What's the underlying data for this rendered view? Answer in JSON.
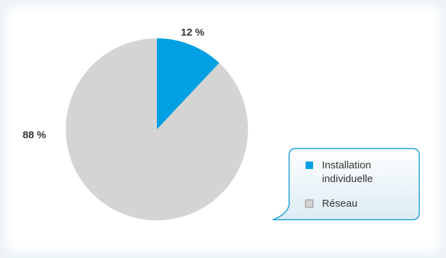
{
  "chart_data": {
    "type": "pie",
    "categories": [
      "Installation individuelle",
      "Réseau"
    ],
    "values": [
      12,
      88
    ],
    "data_labels": [
      "12 %",
      "88 %"
    ],
    "colors": [
      "#00a0e3",
      "#d4d4d4"
    ],
    "legend": {
      "position": "bottom-right",
      "items": [
        {
          "line1": "Installation",
          "line2": "individuelle",
          "color": "#00a0e3"
        },
        {
          "line1": "Réseau",
          "line2": "",
          "color": "#d4d4d4"
        }
      ]
    }
  }
}
